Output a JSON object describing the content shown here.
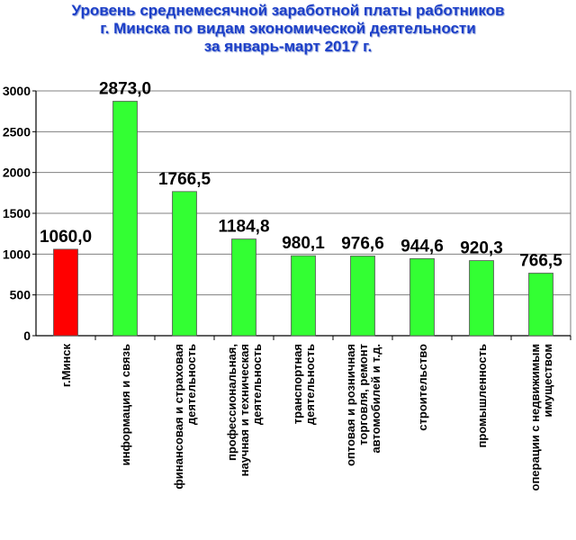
{
  "title_lines": [
    "Уровень среднемесячной заработной платы работников",
    "г. Минска по видам экономической деятельности",
    "за январь-март 2017  г."
  ],
  "chart_data": {
    "type": "bar",
    "title": "Уровень среднемесячной заработной платы работников г. Минска по видам экономической деятельности за январь-март 2017  г.",
    "categories": [
      [
        "г.Минск"
      ],
      [
        "информация и связь"
      ],
      [
        "финансовая и страховая",
        "деятельность"
      ],
      [
        "профессиональная,",
        "научная и техническая",
        "деятельность"
      ],
      [
        "транспортная",
        "деятельность"
      ],
      [
        "оптовая и розничная",
        "торговля, ремонт",
        "автомобилей и т.д."
      ],
      [
        "строительство"
      ],
      [
        "промышленность"
      ],
      [
        "операции с недвижимым",
        "имуществом"
      ]
    ],
    "values": [
      1060.0,
      2873.0,
      1766.5,
      1184.8,
      980.1,
      976.6,
      944.6,
      920.3,
      766.5
    ],
    "value_labels": [
      "1060,0",
      "2873,0",
      "1766,5",
      "1184,8",
      "980,1",
      "976,6",
      "944,6",
      "920,3",
      "766,5"
    ],
    "colors": [
      "#ff0000",
      "#33ff33",
      "#33ff33",
      "#33ff33",
      "#33ff33",
      "#33ff33",
      "#33ff33",
      "#33ff33",
      "#33ff33"
    ],
    "ylim": [
      0,
      3000
    ],
    "yticks": [
      0,
      500,
      1000,
      1500,
      2000,
      2500,
      3000
    ],
    "grid": true,
    "legend": "none"
  }
}
